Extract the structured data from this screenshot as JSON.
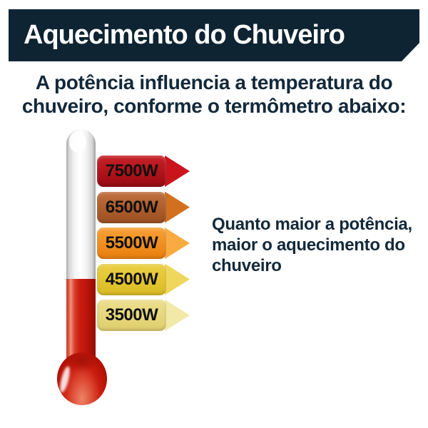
{
  "banner": {
    "title": "Aquecimento do Chuveiro"
  },
  "subtitle": "A potência influencia a temperatura do\nchuveiro, conforme o termômetro abaixo:",
  "side_note": "Quanto maior a potência,\nmaior o aquecimento do\nchuveiro",
  "thermometer": {
    "levels": [
      {
        "label": "7500W",
        "gradient": [
          "#c7222a",
          "#b11219",
          "#950c13"
        ],
        "tip_color": "#ca141c"
      },
      {
        "label": "6500W",
        "gradient": [
          "#bf7040",
          "#ad5c2b",
          "#9a4f22"
        ],
        "tip_color": "#d2701e"
      },
      {
        "label": "5500W",
        "gradient": [
          "#f7a139",
          "#f08e1e",
          "#e67e0f"
        ],
        "tip_color": "#f9ab42"
      },
      {
        "label": "4500W",
        "gradient": [
          "#e9cf46",
          "#e2c52f",
          "#d9ba25"
        ],
        "tip_color": "#eed75c"
      },
      {
        "label": "3500W",
        "gradient": [
          "#ecdf8e",
          "#e6d77b",
          "#ddcd6c"
        ],
        "tip_color": "#f2e9a9"
      }
    ]
  },
  "theme": {
    "banner_bg": "#0e2433",
    "banner_text": "#ffffff",
    "heading_text": "#13293a",
    "mercury": "#c2170c",
    "page_bg": "#ffffff"
  }
}
